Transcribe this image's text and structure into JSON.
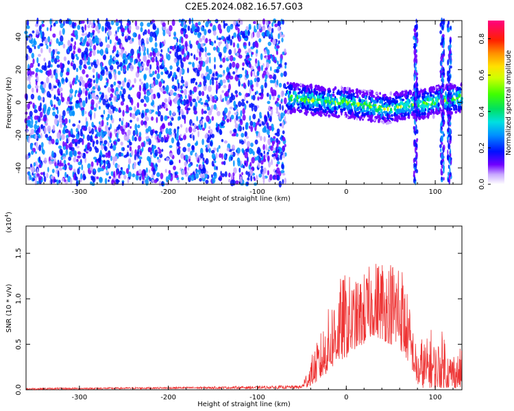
{
  "title": "C2E5.2024.082.16.57.G03",
  "chart_data": [
    {
      "type": "heatmap",
      "xlabel": "Height of straight line (km)",
      "ylabel": "Frequency (Hz)",
      "xlim": [
        -360,
        130
      ],
      "ylim": [
        -50,
        50
      ],
      "xticks": [
        -300,
        -200,
        -100,
        0,
        100
      ],
      "xtick_labels": [
        "-300",
        "-200",
        "-100",
        "0",
        "100"
      ],
      "yticks": [
        -40,
        -20,
        0,
        20,
        40
      ],
      "ytick_labels": [
        "-40",
        "-20",
        "0",
        "20",
        "40"
      ],
      "colorbar": {
        "label": "Normalized spectral amplitude",
        "range": [
          0,
          0.9
        ],
        "ticks": [
          0.0,
          0.2,
          0.4,
          0.6,
          0.8
        ],
        "tick_labels": [
          "0.0",
          "0.2",
          "0.4",
          "0.6",
          "0.8"
        ]
      },
      "noise_region": {
        "x": [
          -360,
          -68
        ],
        "f": [
          -50,
          50
        ],
        "amplitude": 0.15
      },
      "signal_trace": {
        "x": [
          -68,
          -50,
          -30,
          -10,
          0,
          10,
          25,
          35,
          45,
          55,
          65,
          75,
          85,
          95,
          105,
          115,
          130
        ],
        "f": [
          3,
          2,
          1,
          0,
          0,
          -1,
          -2,
          -3,
          -4,
          -3,
          -2,
          -1,
          -1,
          0,
          1,
          2,
          3
        ],
        "peak_amplitude": 0.6
      },
      "vertical_stripes_x": [
        78,
        108,
        116
      ]
    },
    {
      "type": "line",
      "xlabel": "Height of straight line (km)",
      "ylabel": "SNR (10 * v/v)",
      "exponent_label": "(x10",
      "exponent": "4",
      "xlim": [
        -360,
        130
      ],
      "ylim": [
        0,
        1.8
      ],
      "xticks": [
        -300,
        -200,
        -100,
        0,
        100
      ],
      "xtick_labels": [
        "-300",
        "-200",
        "-100",
        "0",
        "100"
      ],
      "yticks": [
        0,
        0.5,
        1.0,
        1.5
      ],
      "ytick_labels": [
        "0.0",
        "0.5",
        "1.0",
        "1.5"
      ],
      "color": "#ee3333",
      "envelope": {
        "x": [
          -360,
          -200,
          -100,
          -50,
          -45,
          -40,
          -30,
          -20,
          -10,
          0,
          10,
          20,
          30,
          40,
          50,
          60,
          70,
          75,
          80,
          85,
          90,
          95,
          100,
          105,
          110,
          115,
          120,
          125,
          130
        ],
        "min": [
          0.0,
          0.01,
          0.01,
          0.01,
          0.02,
          0.05,
          0.1,
          0.2,
          0.3,
          0.35,
          0.45,
          0.5,
          0.6,
          0.55,
          0.5,
          0.45,
          0.3,
          0.2,
          0.05,
          0.02,
          0.02,
          0.02,
          0.02,
          0.02,
          0.02,
          0.02,
          0.02,
          0.02,
          0.02
        ],
        "max": [
          0.02,
          0.03,
          0.04,
          0.05,
          0.2,
          0.35,
          0.6,
          0.9,
          1.2,
          1.3,
          1.2,
          1.3,
          1.4,
          1.5,
          1.45,
          1.55,
          1.0,
          0.7,
          0.4,
          0.6,
          0.55,
          0.7,
          0.5,
          0.6,
          0.7,
          0.4,
          0.45,
          0.4,
          0.5
        ]
      }
    }
  ]
}
